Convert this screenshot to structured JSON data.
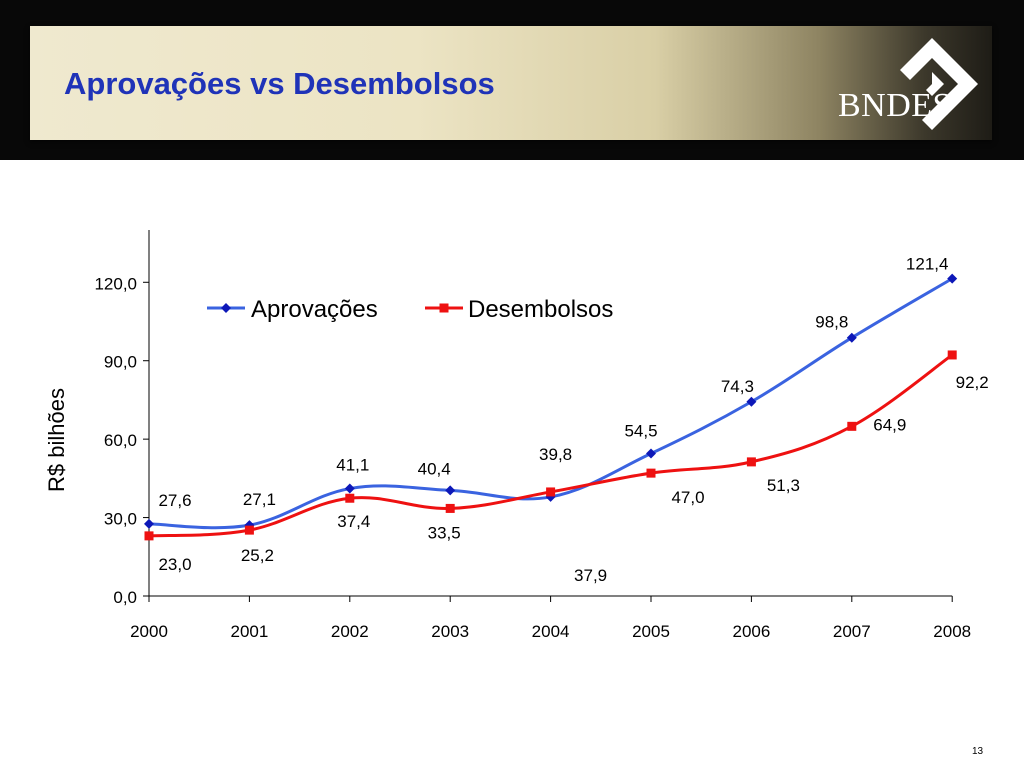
{
  "slide": {
    "title": "Aprovações vs Desembolsos",
    "logo_text": "BNDES",
    "page_number": "13"
  },
  "colors": {
    "title": "#1f33b8",
    "aprovacoes": "#3a63e0",
    "aprovacoes_marker": "#0d18b8",
    "desembolsos": "#ee1111",
    "header_bg": "#080808"
  },
  "chart_data": {
    "type": "line",
    "title": "",
    "xlabel": "",
    "ylabel": "R$ bilhões",
    "categories": [
      "2000",
      "2001",
      "2002",
      "2003",
      "2004",
      "2005",
      "2006",
      "2007",
      "2008"
    ],
    "ylim": [
      0,
      140
    ],
    "yticks": [
      "0,0",
      "30,0",
      "60,0",
      "90,0",
      "120,0"
    ],
    "ytick_values": [
      0,
      30,
      60,
      90,
      120
    ],
    "grid": false,
    "legend_position": "top",
    "series": [
      {
        "name": "Aprovações",
        "marker": "diamond",
        "values": [
          27.6,
          27.1,
          41.1,
          40.4,
          37.9,
          54.5,
          74.3,
          98.8,
          121.4
        ],
        "labels": [
          "27,6",
          "27,1",
          "41,1",
          "40,4",
          "37,9",
          "54,5",
          "74,3",
          "98,8",
          "121,4"
        ]
      },
      {
        "name": "Desembolsos",
        "marker": "square",
        "values": [
          23.0,
          25.2,
          37.4,
          33.5,
          39.8,
          47.0,
          51.3,
          64.9,
          92.2
        ],
        "labels": [
          "23,0",
          "25,2",
          "37,4",
          "33,5",
          "39,8",
          "47,0",
          "51,3",
          "64,9",
          "92,2"
        ]
      }
    ]
  }
}
